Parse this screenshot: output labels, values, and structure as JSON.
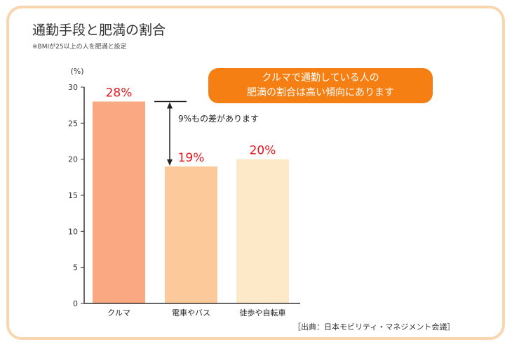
{
  "title": "通勤手段と肥満の割合",
  "subtitle": "※BMIが25以上の人を肥満と設定",
  "callout": {
    "line1": "クルマで通勤している人の",
    "line2": "肥満の割合は高い傾向にあります"
  },
  "annotation": "9%もの差があります",
  "source": "［出典：日本モビリティ・マネジメント会議］",
  "colors": {
    "bar_car": "#f9a882",
    "bar_train": "#fcc99a",
    "bar_walk": "#fde8c7",
    "value_label": "#e8161d",
    "callout_bg": "#f57f12",
    "frame": "#f8d7b0"
  },
  "chart_data": {
    "type": "bar",
    "title": "通勤手段と肥満の割合",
    "ylabel": "(%)",
    "ylim": [
      0,
      30
    ],
    "yticks": [
      "0",
      "5",
      "10",
      "15",
      "20",
      "25",
      "30"
    ],
    "categories": [
      "クルマ",
      "電車やバス",
      "徒歩や自転車"
    ],
    "values": [
      28,
      19,
      20
    ],
    "value_labels": [
      "28%",
      "19%",
      "20%"
    ],
    "grid": false
  }
}
